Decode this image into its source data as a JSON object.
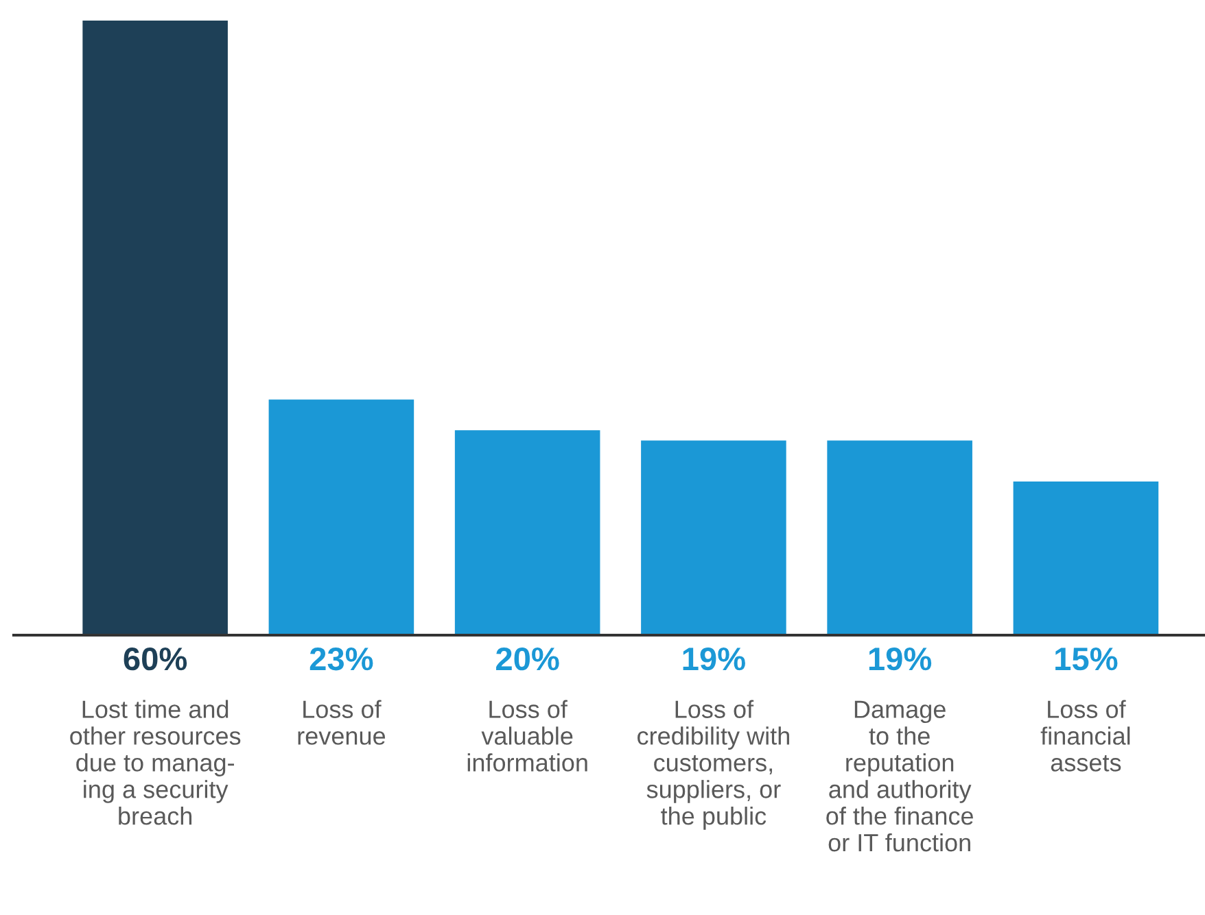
{
  "chart_data": {
    "type": "bar",
    "categories": [
      "Lost time and\nother resources\ndue to manag-\ning a security\nbreach",
      "Loss of\nrevenue",
      "Loss of\nvaluable\ninformation",
      "Loss of\ncredibility with\ncustomers,\nsuppliers, or\nthe public",
      "Damage\nto the\nreputation\nand authority\nof the finance\nor IT function",
      "Loss of\nfinancial\nassets"
    ],
    "values": [
      60,
      23,
      20,
      19,
      19,
      15
    ],
    "value_labels": [
      "60%",
      "23%",
      "20%",
      "19%",
      "19%",
      "15%"
    ],
    "colors": [
      "#1e4057",
      "#1b98d6",
      "#1b98d6",
      "#1b98d6",
      "#1b98d6",
      "#1b98d6"
    ]
  }
}
